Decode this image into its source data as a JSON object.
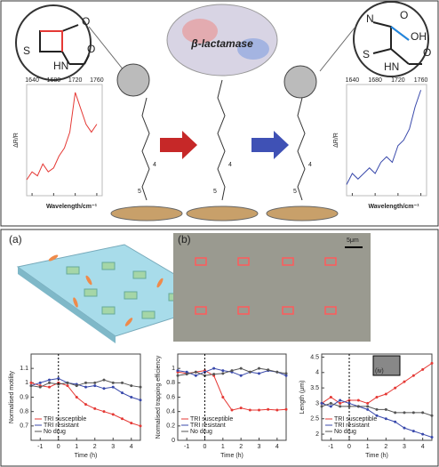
{
  "figure": {
    "top": {
      "enzyme": "β-lactamase",
      "y_label": "ΔR/R",
      "x_label": "Wavelength/cm⁻¹",
      "inset_left_atoms": [
        "O",
        "S",
        "HN",
        "O"
      ],
      "inset_right_atoms": [
        "N",
        "OH",
        "O",
        "S",
        "HN",
        "O"
      ],
      "chain_labels": [
        "4",
        "5"
      ]
    },
    "bottom": {
      "panel_a": "(a)",
      "panel_b": "(b)",
      "scale_bar": "5μm",
      "inset_label": "(iv)"
    }
  },
  "chart_data": [
    {
      "type": "line",
      "xlim": [
        1630,
        1770
      ],
      "xticks": [
        1640,
        1680,
        1720,
        1760
      ],
      "ylim": [
        0,
        14
      ],
      "x": [
        1630,
        1640,
        1650,
        1660,
        1670,
        1680,
        1690,
        1700,
        1710,
        1720,
        1730,
        1740,
        1750,
        1760
      ],
      "color": "#e53935",
      "values": [
        2,
        3,
        2.5,
        4,
        3,
        3.5,
        5,
        6,
        8,
        13,
        11,
        9,
        8,
        9
      ]
    },
    {
      "type": "line",
      "xlim": [
        1630,
        1770
      ],
      "xticks": [
        1640,
        1680,
        1720,
        1760
      ],
      "ylim": [
        0,
        10
      ],
      "x": [
        1630,
        1640,
        1650,
        1660,
        1670,
        1680,
        1690,
        1700,
        1710,
        1720,
        1730,
        1740,
        1750,
        1760
      ],
      "color": "#3949ab",
      "values": [
        1,
        2,
        1.5,
        2,
        2.5,
        2,
        3,
        3.5,
        3,
        4.5,
        5,
        6,
        8,
        9.5
      ]
    },
    {
      "type": "line",
      "y_label": "Normalised motility",
      "x_label": "Time (h)",
      "xlim": [
        -1.5,
        4.5
      ],
      "xticks": [
        -1,
        0,
        1,
        2,
        3,
        4
      ],
      "ylim": [
        0.6,
        1.2
      ],
      "yticks": [
        0.7,
        0.8,
        0.9,
        1,
        1.1
      ],
      "legend": "lower left",
      "x": [
        -1.5,
        -1,
        -0.5,
        0,
        0.5,
        1,
        1.5,
        2,
        2.5,
        3,
        3.5,
        4,
        4.5
      ],
      "series": [
        {
          "name": "TRI susceptible",
          "color": "#e53935",
          "values": [
            1.0,
            0.98,
            0.97,
            1.0,
            0.98,
            0.9,
            0.85,
            0.82,
            0.8,
            0.78,
            0.75,
            0.72,
            0.7
          ]
        },
        {
          "name": "TRI resistant",
          "color": "#3949ab",
          "values": [
            0.98,
            1.0,
            1.02,
            1.03,
            1.0,
            0.99,
            0.97,
            0.98,
            0.96,
            0.97,
            0.93,
            0.9,
            0.88
          ]
        },
        {
          "name": "No drug",
          "color": "#555555",
          "values": [
            0.98,
            0.97,
            1.0,
            0.99,
            1.0,
            0.98,
            1.0,
            1.0,
            1.02,
            1.0,
            1.0,
            0.98,
            0.97
          ]
        }
      ]
    },
    {
      "type": "line",
      "y_label": "Normalised trapping efficiency",
      "x_label": "Time (h)",
      "xlim": [
        -1.5,
        4.5
      ],
      "xticks": [
        -1,
        0,
        1,
        2,
        3,
        4
      ],
      "ylim": [
        0,
        1.2
      ],
      "yticks": [
        0,
        0.2,
        0.4,
        0.6,
        0.8,
        1
      ],
      "legend": "lower left",
      "x": [
        -1.5,
        -1,
        -0.5,
        0,
        0.5,
        1,
        1.5,
        2,
        2.5,
        3,
        3.5,
        4,
        4.5
      ],
      "series": [
        {
          "name": "TRI susceptible",
          "color": "#e53935",
          "values": [
            0.95,
            0.93,
            0.95,
            0.97,
            0.9,
            0.6,
            0.42,
            0.45,
            0.42,
            0.42,
            0.43,
            0.42,
            0.43
          ]
        },
        {
          "name": "TRI resistant",
          "color": "#3949ab",
          "values": [
            0.97,
            0.95,
            0.9,
            0.95,
            1.0,
            0.97,
            0.95,
            0.9,
            0.95,
            0.93,
            0.97,
            0.95,
            0.9
          ]
        },
        {
          "name": "No drug",
          "color": "#555555",
          "values": [
            0.9,
            0.92,
            0.95,
            0.9,
            0.92,
            0.93,
            0.97,
            1.0,
            0.95,
            1.0,
            0.98,
            0.95,
            0.93
          ]
        }
      ]
    },
    {
      "type": "line",
      "y_label": "Length (μm)",
      "x_label": "Time (h)",
      "xlim": [
        -1.5,
        4.5
      ],
      "xticks": [
        -1,
        0,
        1,
        2,
        3,
        4
      ],
      "ylim": [
        1.8,
        4.6
      ],
      "yticks": [
        2,
        2.5,
        3,
        3.5,
        4,
        4.5
      ],
      "legend": "lower left",
      "x": [
        -1.5,
        -1,
        -0.5,
        0,
        0.5,
        1,
        1.5,
        2,
        2.5,
        3,
        3.5,
        4,
        4.5
      ],
      "series": [
        {
          "name": "TRI susceptible",
          "color": "#e53935",
          "values": [
            3.0,
            3.2,
            3.0,
            3.1,
            3.1,
            3.0,
            3.2,
            3.3,
            3.5,
            3.7,
            3.9,
            4.1,
            4.3
          ]
        },
        {
          "name": "TRI resistant",
          "color": "#3949ab",
          "values": [
            3.0,
            2.9,
            3.1,
            3.0,
            2.9,
            2.8,
            2.6,
            2.5,
            2.4,
            2.2,
            2.1,
            2.0,
            1.9
          ]
        },
        {
          "name": "No drug",
          "color": "#555555",
          "values": [
            2.9,
            3.0,
            2.9,
            2.9,
            2.9,
            2.9,
            2.8,
            2.8,
            2.7,
            2.7,
            2.7,
            2.7,
            2.6
          ]
        }
      ]
    }
  ]
}
